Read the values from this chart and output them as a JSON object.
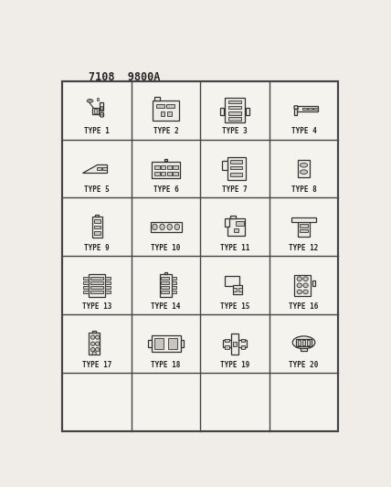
{
  "title": "7108  9800A",
  "bg_color": "#f0ede8",
  "cell_bg": "#f5f3ee",
  "border_color": "#444444",
  "line_color": "#333333",
  "fill_color": "#f0ede8",
  "text_color": "#222222",
  "header_bg": "#e8e5e0",
  "cols": 4,
  "rows": 6,
  "content_rows": 5,
  "types": [
    "TYPE 1",
    "TYPE 2",
    "TYPE 3",
    "TYPE 4",
    "TYPE 5",
    "TYPE 6",
    "TYPE 7",
    "TYPE 8",
    "TYPE 9",
    "TYPE 10",
    "TYPE 11",
    "TYPE 12",
    "TYPE 13",
    "TYPE 14",
    "TYPE 15",
    "TYPE 16",
    "TYPE 17",
    "TYPE 18",
    "TYPE 19",
    "TYPE 20"
  ],
  "figsize": [
    4.28,
    5.33
  ],
  "dpi": 100
}
